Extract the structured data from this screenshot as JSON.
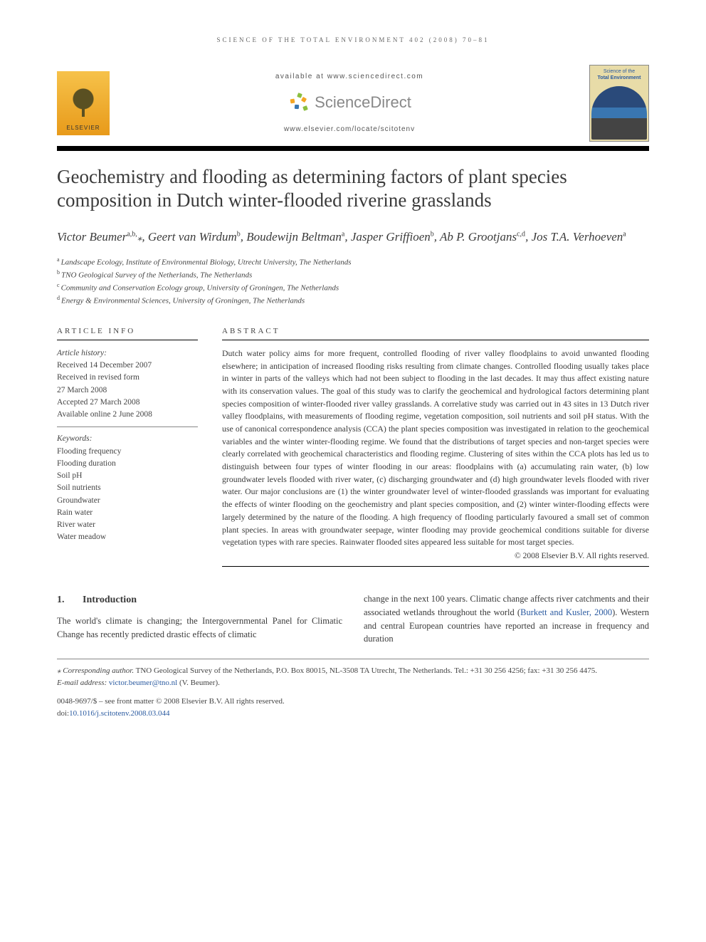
{
  "running_head": "SCIENCE OF THE TOTAL ENVIRONMENT 402 (2008) 70–81",
  "header": {
    "available": "available at www.sciencedirect.com",
    "sd_brand": "ScienceDirect",
    "locate": "www.elsevier.com/locate/scitotenv",
    "elsevier_label": "ELSEVIER",
    "journal_cover_title_a": "Science of the",
    "journal_cover_title_b": "Total Environment"
  },
  "title": "Geochemistry and flooding as determining factors of plant species composition in Dutch winter-flooded riverine grasslands",
  "authors_html": "Victor Beumer<sup>a,b,</sup><span class='star'>⁎</span>, Geert van Wirdum<sup>b</sup>, Boudewijn Beltman<sup>a</sup>, Jasper Griffioen<sup>b</sup>, Ab P. Grootjans<sup>c,d</sup>, Jos T.A. Verhoeven<sup>a</sup>",
  "affiliations": [
    {
      "sup": "a",
      "text": "Landscape Ecology, Institute of Environmental Biology, Utrecht University, The Netherlands"
    },
    {
      "sup": "b",
      "text": "TNO Geological Survey of the Netherlands, The Netherlands"
    },
    {
      "sup": "c",
      "text": "Community and Conservation Ecology group, University of Groningen, The Netherlands"
    },
    {
      "sup": "d",
      "text": "Energy & Environmental Sciences, University of Groningen, The Netherlands"
    }
  ],
  "article_info_head": "ARTICLE INFO",
  "abstract_head": "ABSTRACT",
  "history": {
    "label": "Article history:",
    "lines": [
      "Received 14 December 2007",
      "Received in revised form",
      "27 March 2008",
      "Accepted 27 March 2008",
      "Available online 2 June 2008"
    ]
  },
  "keywords": {
    "label": "Keywords:",
    "items": [
      "Flooding frequency",
      "Flooding duration",
      "Soil pH",
      "Soil nutrients",
      "Groundwater",
      "Rain water",
      "River water",
      "Water meadow"
    ]
  },
  "abstract": "Dutch water policy aims for more frequent, controlled flooding of river valley floodplains to avoid unwanted flooding elsewhere; in anticipation of increased flooding risks resulting from climate changes. Controlled flooding usually takes place in winter in parts of the valleys which had not been subject to flooding in the last decades. It may thus affect existing nature with its conservation values. The goal of this study was to clarify the geochemical and hydrological factors determining plant species composition of winter-flooded river valley grasslands. A correlative study was carried out in 43 sites in 13 Dutch river valley floodplains, with measurements of flooding regime, vegetation composition, soil nutrients and soil pH status. With the use of canonical correspondence analysis (CCA) the plant species composition was investigated in relation to the geochemical variables and the winter winter-flooding regime. We found that the distributions of target species and non-target species were clearly correlated with geochemical characteristics and flooding regime. Clustering of sites within the CCA plots has led us to distinguish between four types of winter flooding in our areas: floodplains with (a) accumulating rain water, (b) low groundwater levels flooded with river water, (c) discharging groundwater and (d) high groundwater levels flooded with river water. Our major conclusions are (1) the winter groundwater level of winter-flooded grasslands was important for evaluating the effects of winter flooding on the geochemistry and plant species composition, and (2) winter winter-flooding effects were largely determined by the nature of the flooding. A high frequency of flooding particularly favoured a small set of common plant species. In areas with groundwater seepage, winter flooding may provide geochemical conditions suitable for diverse vegetation types with rare species. Rainwater flooded sites appeared less suitable for most target species.",
  "copyright": "© 2008 Elsevier B.V. All rights reserved.",
  "intro": {
    "num": "1.",
    "heading": "Introduction",
    "col1": "The world's climate is changing; the Intergovernmental Panel for Climatic Change has recently predicted drastic effects of climatic",
    "col2_a": "change in the next 100 years. Climatic change affects river catchments and their associated wetlands throughout the world (",
    "col2_link": "Burkett and Kusler, 2000",
    "col2_b": "). Western and central European countries have reported an increase in frequency and duration"
  },
  "footnotes": {
    "corr_label": "⁎ Corresponding author.",
    "corr_text": " TNO Geological Survey of the Netherlands, P.O. Box 80015, NL-3508 TA Utrecht, The Netherlands. Tel.: +31 30 256 4256; fax: +31 30 256 4475.",
    "email_label": "E-mail address: ",
    "email": "victor.beumer@tno.nl",
    "email_who": " (V. Beumer).",
    "issn": "0048-9697/$ – see front matter © 2008 Elsevier B.V. All rights reserved.",
    "doi_label": "doi:",
    "doi": "10.1016/j.scitotenv.2008.03.044"
  },
  "colors": {
    "link": "#2a5aa0",
    "text": "#3a3a3a",
    "rule": "#000000"
  }
}
